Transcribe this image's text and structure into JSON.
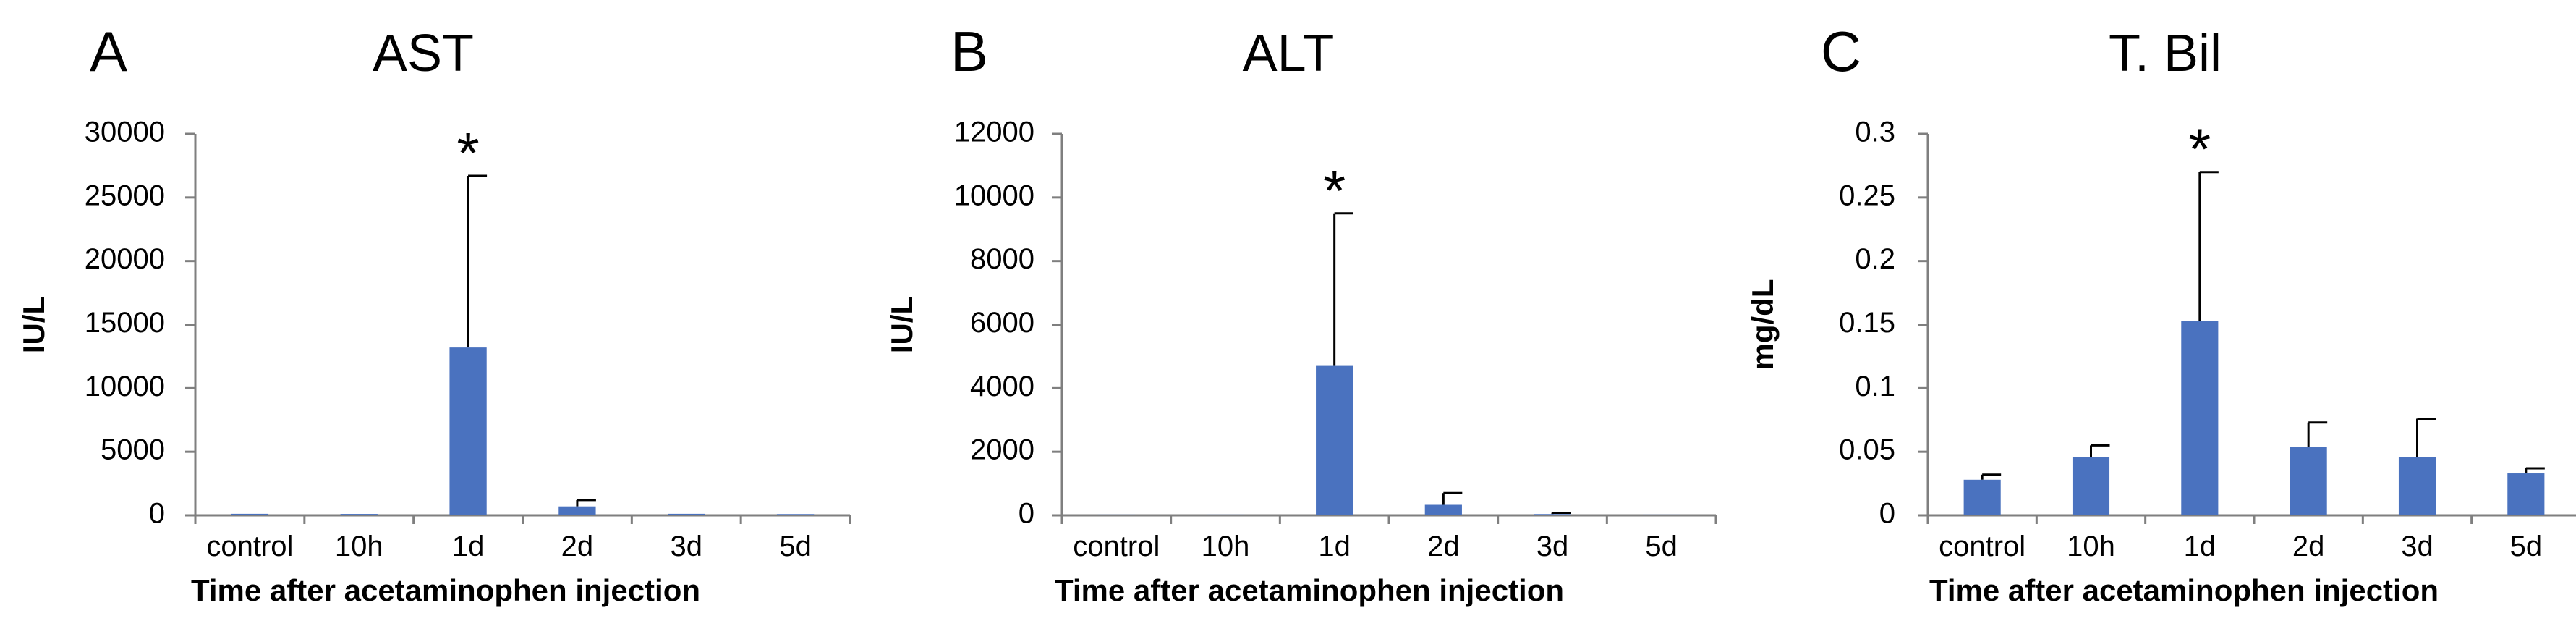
{
  "figure": {
    "shared_xlabel": "Time after acetaminophen injection"
  },
  "colors": {
    "bar": "#4a72bf",
    "axis": "#7f7f7f",
    "text": "#000000",
    "error": "#000000"
  },
  "chart_data": [
    {
      "panel_letter": "A",
      "title": "AST",
      "type": "bar",
      "categories": [
        "control",
        "10h",
        "1d",
        "2d",
        "3d",
        "5d"
      ],
      "values": [
        120,
        110,
        13200,
        700,
        120,
        100
      ],
      "error_upper": [
        null,
        null,
        26700,
        1200,
        null,
        null
      ],
      "significance": [
        "",
        "",
        "*",
        "",
        "",
        ""
      ],
      "xlabel": "Time after acetaminophen injection",
      "ylabel": "IU/L",
      "ylim": [
        0,
        30000
      ],
      "yticks": [
        0,
        5000,
        10000,
        15000,
        20000,
        25000,
        30000
      ],
      "ytick_labels": [
        "0",
        "5000",
        "10000",
        "15000",
        "20000",
        "25000",
        "30000"
      ],
      "grid": false
    },
    {
      "panel_letter": "B",
      "title": "ALT",
      "type": "bar",
      "categories": [
        "control",
        "10h",
        "1d",
        "2d",
        "3d",
        "5d"
      ],
      "values": [
        25,
        25,
        4700,
        330,
        40,
        25
      ],
      "error_upper": [
        null,
        null,
        9500,
        700,
        80,
        null
      ],
      "significance": [
        "",
        "",
        "*",
        "",
        "",
        ""
      ],
      "xlabel": "Time after acetaminophen injection",
      "ylabel": "IU/L",
      "ylim": [
        0,
        12000
      ],
      "yticks": [
        0,
        2000,
        4000,
        6000,
        8000,
        10000,
        12000
      ],
      "ytick_labels": [
        "0",
        "2000",
        "4000",
        "6000",
        "8000",
        "10000",
        "12000"
      ],
      "grid": false
    },
    {
      "panel_letter": "C",
      "title": "T. Bil",
      "type": "bar",
      "categories": [
        "control",
        "10h",
        "1d",
        "2d",
        "3d",
        "5d"
      ],
      "values": [
        0.028,
        0.046,
        0.153,
        0.054,
        0.046,
        0.033
      ],
      "error_upper": [
        0.032,
        0.055,
        0.27,
        0.073,
        0.076,
        0.037
      ],
      "significance": [
        "",
        "",
        "*",
        "",
        "",
        ""
      ],
      "xlabel": "Time after acetaminophen injection",
      "ylabel": "mg/dL",
      "ylim": [
        0,
        0.3
      ],
      "yticks": [
        0,
        0.05,
        0.1,
        0.15,
        0.2,
        0.25,
        0.3
      ],
      "ytick_labels": [
        "0",
        "0.05",
        "0.1",
        "0.15",
        "0.2",
        "0.25",
        "0.3"
      ],
      "grid": false
    }
  ]
}
